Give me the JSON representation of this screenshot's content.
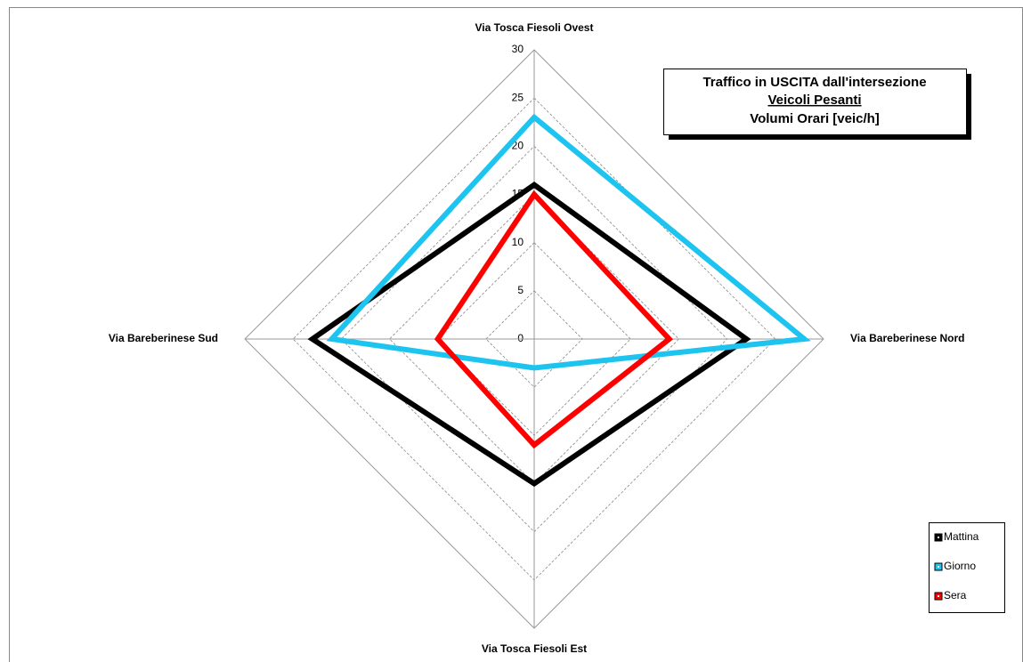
{
  "chart_data": {
    "type": "radar",
    "title_lines": [
      "Traffico in USCITA dall'intersezione",
      "Veicoli Pesanti",
      "Volumi Orari [veic/h]"
    ],
    "categories": [
      "Via Tosca Fiesoli Ovest",
      "Via Bareberinese Nord",
      "Via Tosca Fiesoli Est",
      "Via Bareberinese Sud"
    ],
    "series": [
      {
        "name": "Mattina",
        "color": "#000000",
        "values": [
          16,
          22,
          15,
          23
        ]
      },
      {
        "name": "Giorno",
        "color": "#1ec4f0",
        "values": [
          23,
          28,
          3,
          21
        ]
      },
      {
        "name": "Sera",
        "color": "#ff0000",
        "values": [
          15,
          14,
          11,
          10
        ]
      }
    ],
    "ylim": [
      0,
      30
    ],
    "yticks": [
      0,
      5,
      10,
      15,
      20,
      25,
      30
    ],
    "grid": true,
    "legend": "bottom-right"
  }
}
